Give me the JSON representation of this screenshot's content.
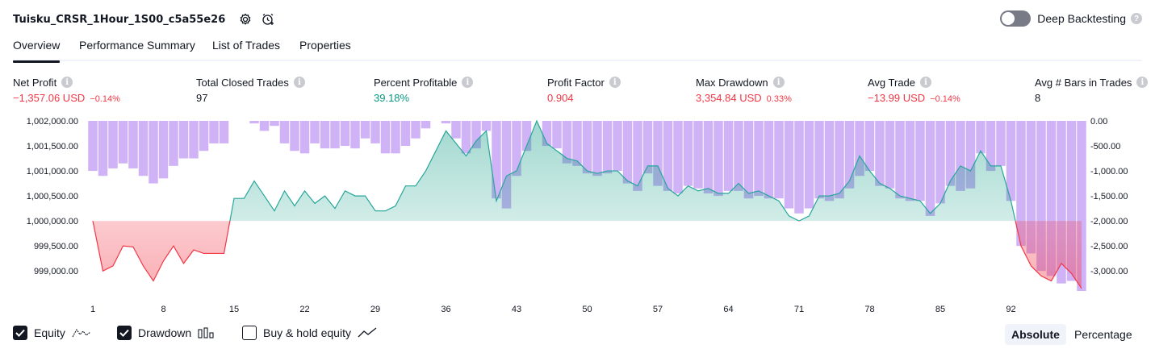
{
  "header": {
    "strategy_name": "Tuisku_CRSR_1Hour_1S00_c5a55e26",
    "settings_icon": "settings-icon",
    "add_alert_icon": "add-alert-icon",
    "deep_backtesting_label": "Deep Backtesting",
    "deep_backtesting_enabled": false
  },
  "tabs": [
    "Overview",
    "Performance Summary",
    "List of Trades",
    "Properties"
  ],
  "metrics": {
    "net_profit": {
      "label": "Net Profit",
      "value": "−1,357.06 USD",
      "pct": "−0.14%"
    },
    "total_closed_trades": {
      "label": "Total Closed Trades",
      "value": "97"
    },
    "percent_profitable": {
      "label": "Percent Profitable",
      "value": "39.18%"
    },
    "profit_factor": {
      "label": "Profit Factor",
      "value": "0.904"
    },
    "max_drawdown": {
      "label": "Max Drawdown",
      "value": "3,354.84 USD",
      "pct": "0.33%"
    },
    "avg_trade": {
      "label": "Avg Trade",
      "value": "−13.99 USD",
      "pct": "−0.14%"
    },
    "avg_bars": {
      "label": "Avg # Bars in Trades",
      "value": "8"
    }
  },
  "legend": {
    "equity": "Equity",
    "drawdown": "Drawdown",
    "buy_hold": "Buy & hold equity",
    "equity_checked": true,
    "drawdown_checked": true,
    "buy_hold_checked": false
  },
  "scale_buttons": {
    "absolute": "Absolute",
    "percentage": "Percentage",
    "selected": "Absolute"
  },
  "colors": {
    "equity_positive": "#089981",
    "equity_negative": "#f23645",
    "drawdown_bar": "#c8a6f5",
    "equity_line": "#26a69a",
    "negative_metric": "#f23645",
    "positive_metric": "#089981"
  },
  "chart_data": {
    "type": "area",
    "x_ticks": [
      "1",
      "8",
      "15",
      "22",
      "29",
      "36",
      "43",
      "50",
      "57",
      "64",
      "71",
      "78",
      "85",
      "92"
    ],
    "left_axis_ticks": [
      "1,002,000.00",
      "1,001,500.00",
      "1,001,000.00",
      "1,000,500.00",
      "1,000,000.00",
      "999,500.00",
      "999,000.00"
    ],
    "right_axis_ticks": [
      "0.00",
      "-500.00",
      "-1,000.00",
      "-1,500.00",
      "-2,000.00",
      "-2,500.00",
      "-3,000.00"
    ],
    "left_ylim": [
      998600,
      1002000
    ],
    "right_ylim": [
      -3400,
      0
    ],
    "baseline": 1000000,
    "series": [
      {
        "name": "Equity",
        "values": [
          1000000,
          999000,
          999100,
          999500,
          999480,
          999100,
          998800,
          999200,
          999500,
          999150,
          999420,
          999350,
          999350,
          999350,
          1000450,
          1000450,
          1000800,
          1000500,
          1000200,
          1000600,
          1000300,
          1000600,
          1000350,
          1000500,
          1000250,
          1000600,
          1000500,
          1000500,
          1000200,
          1000200,
          1000300,
          1000700,
          1000700,
          1001000,
          1001400,
          1001800,
          1001550,
          1001300,
          1001600,
          1001800,
          1000400,
          1000900,
          1001000,
          1001500,
          1002000,
          1001550,
          1001400,
          1001250,
          1001200,
          1001000,
          1000950,
          1001000,
          1001000,
          1000800,
          1000700,
          1001100,
          1001100,
          1000650,
          1000500,
          1000700,
          1000600,
          1000650,
          1000550,
          1000550,
          1000750,
          1000550,
          1000600,
          1000500,
          1000400,
          1000100,
          1000000,
          1000100,
          1000500,
          1000500,
          1000550,
          1000800,
          1001300,
          1001000,
          1000750,
          1000650,
          1000500,
          1000450,
          1000400,
          1000150,
          1000350,
          1000800,
          1001100,
          1001000,
          1001400,
          1001100,
          1001100,
          1000400,
          999500,
          999100,
          998900,
          998800,
          999150,
          998950,
          998650
        ]
      },
      {
        "name": "Drawdown",
        "values": [
          -1000,
          -1100,
          -950,
          -850,
          -950,
          -1100,
          -1250,
          -1150,
          -900,
          -750,
          -750,
          -600,
          -450,
          -450,
          0,
          0,
          -50,
          -200,
          -100,
          -450,
          -600,
          -650,
          -450,
          -550,
          -550,
          -500,
          -550,
          -350,
          -450,
          -650,
          -650,
          -500,
          -350,
          -150,
          0,
          -50,
          -350,
          -650,
          -550,
          -200,
          -1550,
          -1750,
          -1100,
          -600,
          0,
          -500,
          -550,
          -850,
          -900,
          -1050,
          -1100,
          -1050,
          -1000,
          -1250,
          -1400,
          -1050,
          -1300,
          -1400,
          -1450,
          -1300,
          -1350,
          -1450,
          -1500,
          -1400,
          -1400,
          -1550,
          -1500,
          -1550,
          -1550,
          -1750,
          -1850,
          -1750,
          -1550,
          -1600,
          -1550,
          -1350,
          -1100,
          -1000,
          -1300,
          -1350,
          -1550,
          -1600,
          -1600,
          -1900,
          -1650,
          -1300,
          -1400,
          -1350,
          -650,
          -1000,
          -900,
          -1600,
          -2500,
          -2650,
          -3000,
          -3100,
          -3250,
          -3200,
          -3400
        ]
      }
    ]
  }
}
